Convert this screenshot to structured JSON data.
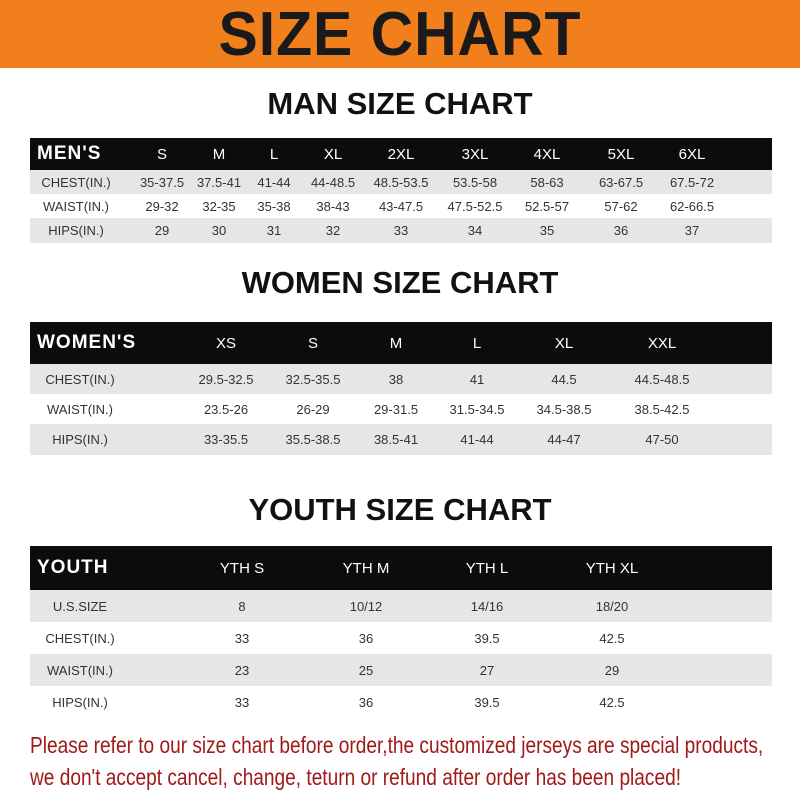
{
  "banner": {
    "title": "SIZE CHART",
    "color": "#f07f1c"
  },
  "men": {
    "title": "MAN SIZE CHART",
    "header": [
      "MEN'S",
      "S",
      "M",
      "L",
      "XL",
      "2XL",
      "3XL",
      "4XL",
      "5XL",
      "6XL"
    ],
    "rows": [
      [
        "CHEST(IN.)",
        "35-37.5",
        "37.5-41",
        "41-44",
        "44-48.5",
        "48.5-53.5",
        "53.5-58",
        "58-63",
        "63-67.5",
        "67.5-72"
      ],
      [
        "WAIST(IN.)",
        "29-32",
        "32-35",
        "35-38",
        "38-43",
        "43-47.5",
        "47.5-52.5",
        "52.5-57",
        "57-62",
        "62-66.5"
      ],
      [
        "HIPS(IN.)",
        "29",
        "30",
        "31",
        "32",
        "33",
        "34",
        "35",
        "36",
        "37"
      ]
    ]
  },
  "women": {
    "title": "WOMEN SIZE CHART",
    "header": [
      "WOMEN'S",
      "XS",
      "S",
      "M",
      "L",
      "XL",
      "XXL"
    ],
    "rows": [
      [
        "CHEST(IN.)",
        "29.5-32.5",
        "32.5-35.5",
        "38",
        "41",
        "44.5",
        "44.5-48.5"
      ],
      [
        "WAIST(IN.)",
        "23.5-26",
        "26-29",
        "29-31.5",
        "31.5-34.5",
        "34.5-38.5",
        "38.5-42.5"
      ],
      [
        "HIPS(IN.)",
        "33-35.5",
        "35.5-38.5",
        "38.5-41",
        "41-44",
        "44-47",
        "47-50"
      ]
    ]
  },
  "youth": {
    "title": "YOUTH SIZE CHART",
    "header": [
      "YOUTH",
      "YTH S",
      "YTH M",
      "YTH L",
      "YTH XL"
    ],
    "rows": [
      [
        "U.S.SIZE",
        "8",
        "10/12",
        "14/16",
        "18/20"
      ],
      [
        "CHEST(IN.)",
        "33",
        "36",
        "39.5",
        "42.5"
      ],
      [
        "WAIST(IN.)",
        "23",
        "25",
        "27",
        "29"
      ],
      [
        "HIPS(IN.)",
        "33",
        "36",
        "39.5",
        "42.5"
      ]
    ]
  },
  "note": {
    "line1": "Please refer to our size chart before order,the customized jerseys are special products,",
    "line2": "we don't accept cancel, change, teturn or refund after order has been placed!",
    "color": "#a01a1a"
  }
}
